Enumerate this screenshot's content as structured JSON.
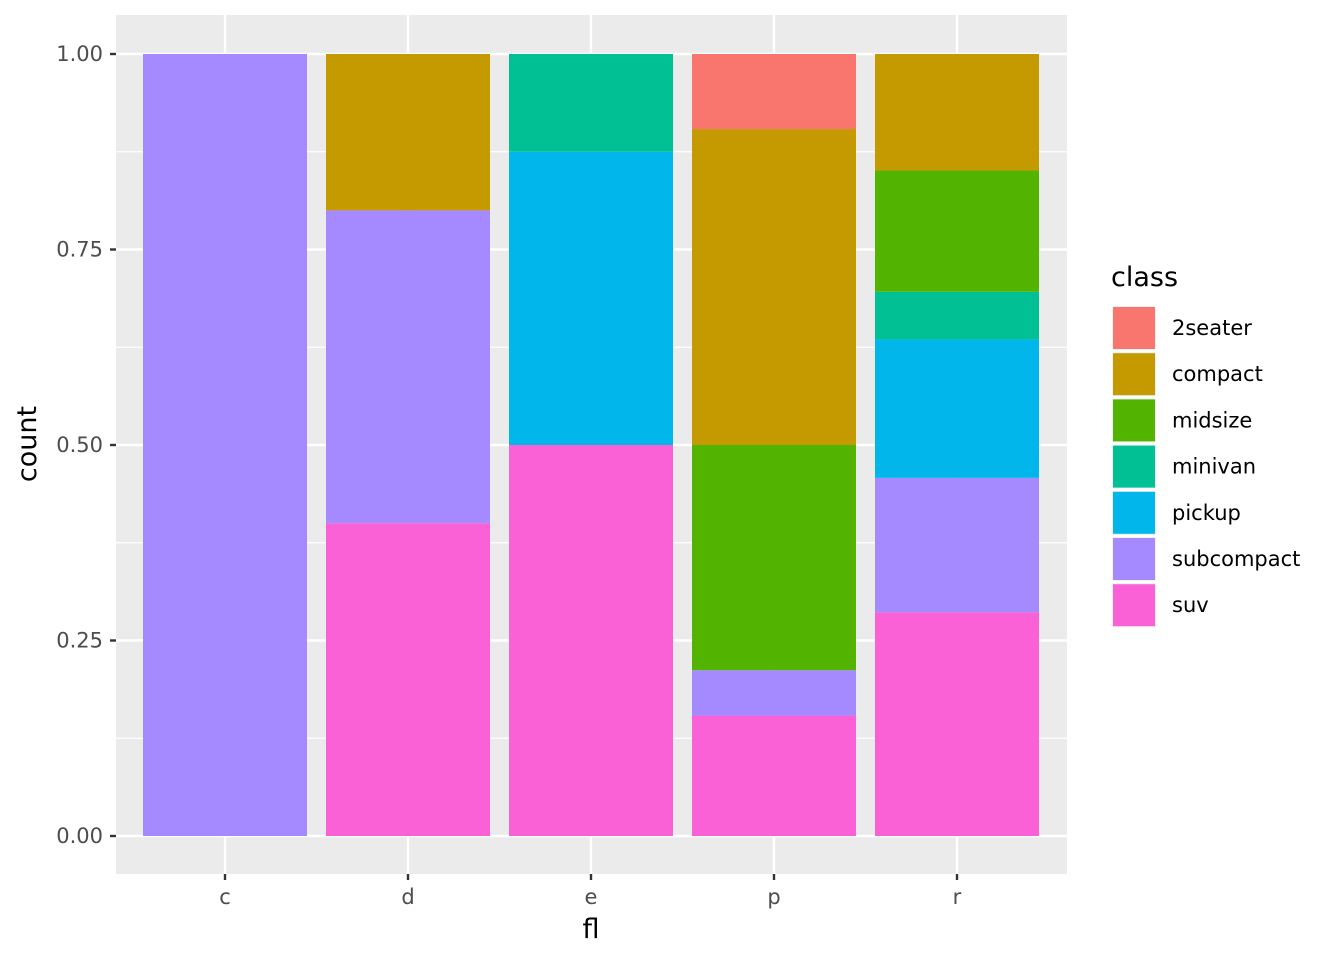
{
  "chart_data": {
    "type": "bar",
    "stacked": true,
    "position": "fill",
    "xlabel": "fl",
    "ylabel": "count",
    "categories": [
      "c",
      "d",
      "e",
      "p",
      "r"
    ],
    "ylim": [
      0,
      1
    ],
    "yticks": [
      "0.00",
      "0.25",
      "0.50",
      "0.75",
      "1.00"
    ],
    "ytick_values": [
      0,
      0.25,
      0.5,
      0.75,
      1.0
    ],
    "grid": true,
    "legend": {
      "title": "class",
      "placement": "right"
    },
    "series": [
      {
        "name": "2seater",
        "color": "#F8766D",
        "values": [
          0,
          0,
          0,
          0.096,
          0
        ]
      },
      {
        "name": "compact",
        "color": "#C49A00",
        "values": [
          0,
          0.2,
          0,
          0.404,
          0.149
        ]
      },
      {
        "name": "midsize",
        "color": "#53B400",
        "values": [
          0,
          0,
          0,
          0.288,
          0.155
        ]
      },
      {
        "name": "minivan",
        "color": "#00C094",
        "values": [
          0,
          0,
          0.125,
          0,
          0.061
        ]
      },
      {
        "name": "pickup",
        "color": "#00B6EB",
        "values": [
          0,
          0,
          0.375,
          0,
          0.177
        ]
      },
      {
        "name": "subcompact",
        "color": "#A58AFF",
        "values": [
          1.0,
          0.4,
          0,
          0.058,
          0.172
        ]
      },
      {
        "name": "suv",
        "color": "#FB61D7",
        "values": [
          0,
          0.4,
          0.5,
          0.154,
          0.286
        ]
      }
    ]
  }
}
